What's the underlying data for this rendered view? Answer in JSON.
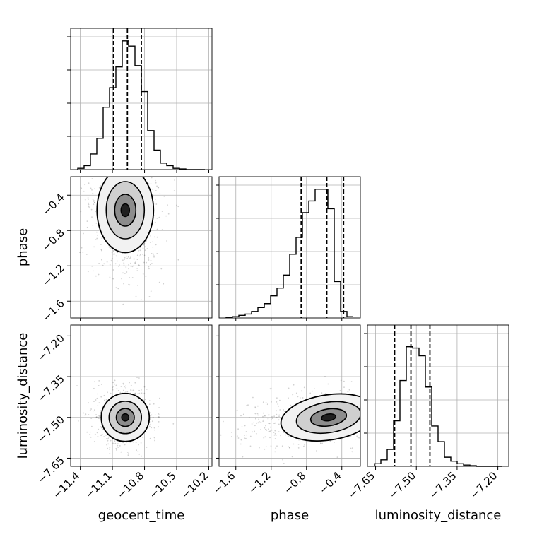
{
  "chart_data": {
    "type": "corner",
    "parameters": [
      "geocent_time",
      "phase",
      "luminosity_distance"
    ],
    "axis_labels": {
      "geocent_time": "geocent_time",
      "phase": "phase",
      "luminosity_distance": "luminosity_distance"
    },
    "ticks": {
      "geocent_time": [
        "−11.4",
        "−11.1",
        "−10.8",
        "−10.5",
        "−10.2"
      ],
      "phase": [
        "−1.6",
        "−1.2",
        "−0.8",
        "−0.4"
      ],
      "luminosity_distance": [
        "−7.65",
        "−7.50",
        "−7.35",
        "−7.20"
      ]
    },
    "tick_values": {
      "geocent_time": [
        -11.4,
        -11.1,
        -10.8,
        -10.5,
        -10.2
      ],
      "phase": [
        -1.6,
        -1.2,
        -0.8,
        -0.4
      ],
      "luminosity_distance": [
        -7.65,
        -7.5,
        -7.35,
        -7.2
      ]
    },
    "ranges": {
      "geocent_time": [
        -11.49,
        -10.17
      ],
      "phase": [
        -1.79,
        -0.19
      ],
      "luminosity_distance": [
        -7.68,
        -7.16
      ]
    },
    "quantiles": {
      "geocent_time": [
        -11.09,
        -10.96,
        -10.83
      ],
      "phase": [
        -0.86,
        -0.57,
        -0.38
      ],
      "luminosity_distance": [
        -7.58,
        -7.52,
        -7.45
      ]
    },
    "histograms": {
      "geocent_time": [
        0.01,
        0.03,
        0.12,
        0.24,
        0.48,
        0.63,
        0.79,
        0.99,
        0.95,
        0.8,
        0.6,
        0.3,
        0.15,
        0.05,
        0.03,
        0.01,
        0.005,
        0,
        0,
        0
      ],
      "phase": [
        0.005,
        0.01,
        0.02,
        0.03,
        0.05,
        0.08,
        0.11,
        0.17,
        0.23,
        0.33,
        0.49,
        0.62,
        0.81,
        0.9,
        0.99,
        0.99,
        0.84,
        0.28,
        0.05,
        0.01
      ],
      "luminosity_distance": [
        0.02,
        0.05,
        0.13,
        0.35,
        0.66,
        0.92,
        0.91,
        0.85,
        0.61,
        0.31,
        0.19,
        0.07,
        0.04,
        0.02,
        0.01,
        0.005,
        0,
        0,
        0,
        0
      ]
    },
    "contour_centers": {
      "phase_vs_geocent_time": [
        -10.98,
        -0.57
      ],
      "luminosity_distance_vs_geocent_time": [
        -10.98,
        -7.5
      ],
      "luminosity_distance_vs_phase": [
        -0.55,
        -7.5
      ]
    },
    "grid": true
  }
}
